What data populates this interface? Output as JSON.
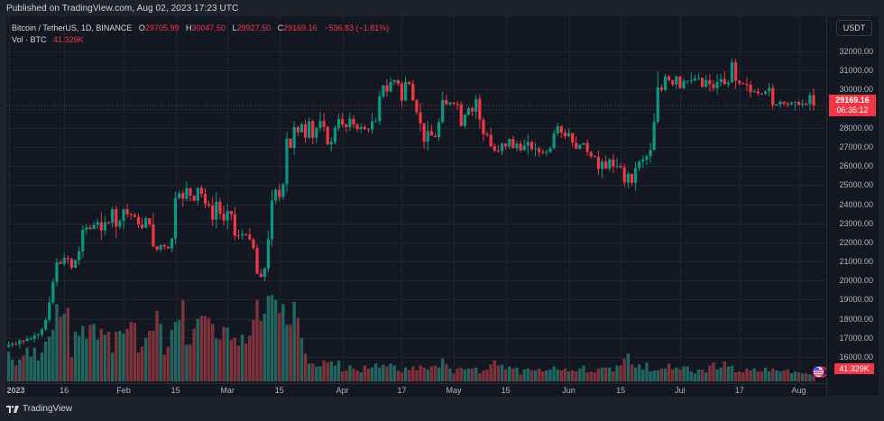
{
  "published": "Published on TradingView.com, Aug 02, 2023 17:23 UTC",
  "legend": {
    "symbol": "Bitcoin / TetherUS, 1D, BINANCE",
    "o_label": "O",
    "o": "29705.99",
    "h_label": "H",
    "h": "30047.50",
    "l_label": "L",
    "l": "28927.50",
    "c_label": "C",
    "c": "29169.16",
    "change": "−536.83 (−1.81%)",
    "vol_label": "Vol · BTC",
    "vol_value": "41.329K"
  },
  "price_axis": {
    "unit": "USDT",
    "ticks": [
      "32000.00",
      "31000.00",
      "30000.00",
      "28000.00",
      "27000.00",
      "26000.00",
      "25000.00",
      "24000.00",
      "23000.00",
      "22000.00",
      "21000.00",
      "20000.00",
      "19000.00",
      "18000.00",
      "17000.00",
      "16000.00"
    ],
    "last_price": "29169.16",
    "countdown": "06:36:12",
    "volume_marker": "41.329K"
  },
  "time_axis": {
    "ticks": [
      "2023",
      "16",
      "Feb",
      "15",
      "Mar",
      "15",
      "Apr",
      "17",
      "May",
      "15",
      "Jun",
      "15",
      "Jul",
      "17",
      "Aug"
    ]
  },
  "brand": {
    "label": "TradingView"
  },
  "colors": {
    "up": "#089981",
    "down": "#f23645",
    "vol_up": "#22675f",
    "vol_down": "#7f323b",
    "background": "#131722",
    "grid": "#1f2430"
  },
  "chart_data": {
    "type": "candlestick",
    "title": "Bitcoin / TetherUS, 1D, BINANCE",
    "xlabel": "",
    "ylabel": "USDT",
    "ylim": [
      15500,
      32600
    ],
    "x_range": [
      "2023-01-01",
      "2023-08-02"
    ],
    "grid": true,
    "last": {
      "open": 29705.99,
      "high": 30047.5,
      "low": 28927.5,
      "close": 29169.16,
      "change": -536.83,
      "change_pct": -1.81,
      "volume_k": 41.329
    },
    "closes": [
      16625,
      16688,
      16680,
      16863,
      16836,
      16951,
      16955,
      17127,
      17178,
      17440,
      17943,
      18850,
      19930,
      20954,
      20880,
      21185,
      21132,
      20677,
      21071,
      21534,
      22666,
      22783,
      22707,
      22917,
      23060,
      22630,
      23060,
      23023,
      23743,
      22827,
      23125,
      23732,
      23491,
      23431,
      23327,
      22937,
      22763,
      23264,
      22940,
      21797,
      21625,
      21862,
      21783,
      21682,
      22197,
      24327,
      24574,
      24290,
      24838,
      24450,
      24188,
      24856,
      24544,
      24020,
      23940,
      23190,
      24125,
      23495,
      23147,
      23640,
      23470,
      22355,
      22354,
      22430,
      22410,
      22160,
      21705,
      20360,
      20190,
      20630,
      22165,
      24195,
      24750,
      24375,
      25050,
      27436,
      26949,
      28038,
      27767,
      28176,
      27486,
      28335,
      27475,
      27992,
      28352,
      28044,
      27132,
      27260,
      27996,
      28465,
      28171,
      28035,
      28469,
      28164,
      27940,
      28044,
      27923,
      27912,
      28331,
      28340,
      29654,
      30223,
      29890,
      30390,
      30485,
      30315,
      29430,
      30395,
      30303,
      29438,
      28812,
      28243,
      27262,
      27824,
      27590,
      27515,
      28301,
      29450,
      29233,
      29319,
      29258,
      29230,
      28092,
      28680,
      29016,
      28848,
      29520,
      28424,
      27669,
      27629,
      27027,
      26804,
      26782,
      27175,
      27023,
      27417,
      26932,
      27167,
      26818,
      27070,
      27255,
      26887,
      26920,
      26735,
      26700,
      26745,
      26930,
      27710,
      28074,
      27748,
      27555,
      27725,
      27225,
      26900,
      27110,
      27210,
      26735,
      26500,
      26480,
      25855,
      26226,
      25853,
      26340,
      25980,
      26000,
      25920,
      25133,
      25590,
      25123,
      25880,
      26230,
      26340,
      26510,
      26835,
      28312,
      30115,
      29980,
      30690,
      30480,
      30270,
      30690,
      30080,
      30450,
      30455,
      30485,
      30585,
      30615,
      30150,
      30500,
      30280,
      30075,
      30390,
      30550,
      30280,
      30375,
      31425,
      30460,
      30325,
      30300,
      30250,
      29860,
      29910,
      29800,
      29790,
      29900,
      30080,
      29180,
      29225,
      29360,
      29270,
      29230,
      29310,
      29355,
      29200,
      29269,
      29240,
      29705,
      29169
    ],
    "volume_scale_note": "relative heights, max ~1.0",
    "volumes": [
      0.3,
      0.22,
      0.16,
      0.22,
      0.26,
      0.34,
      0.25,
      0.34,
      0.21,
      0.29,
      0.4,
      0.45,
      0.52,
      0.78,
      0.65,
      0.68,
      0.74,
      0.24,
      0.5,
      0.46,
      0.56,
      0.43,
      0.57,
      0.58,
      0.42,
      0.53,
      0.47,
      0.5,
      0.29,
      0.5,
      0.51,
      0.48,
      0.53,
      0.6,
      0.59,
      0.29,
      0.35,
      0.44,
      0.51,
      0.51,
      0.71,
      0.58,
      0.27,
      0.35,
      0.52,
      0.6,
      0.62,
      0.82,
      0.37,
      0.37,
      0.53,
      0.63,
      0.66,
      0.66,
      0.64,
      0.58,
      0.43,
      0.42,
      0.55,
      0.54,
      0.42,
      0.44,
      0.36,
      0.47,
      0.38,
      0.46,
      0.62,
      0.82,
      0.61,
      0.68,
      0.86,
      0.87,
      0.82,
      0.69,
      0.78,
      0.57,
      0.57,
      0.8,
      0.64,
      0.44,
      0.28,
      0.18,
      0.18,
      0.15,
      0.15,
      0.21,
      0.19,
      0.2,
      0.16,
      0.21,
      0.1,
      0.11,
      0.16,
      0.13,
      0.11,
      0.09,
      0.16,
      0.13,
      0.14,
      0.18,
      0.14,
      0.17,
      0.15,
      0.18,
      0.16,
      0.11,
      0.09,
      0.14,
      0.11,
      0.15,
      0.11,
      0.16,
      0.14,
      0.12,
      0.15,
      0.16,
      0.14,
      0.23,
      0.17,
      0.13,
      0.08,
      0.13,
      0.14,
      0.12,
      0.13,
      0.13,
      0.14,
      0.08,
      0.11,
      0.12,
      0.17,
      0.21,
      0.16,
      0.17,
      0.12,
      0.15,
      0.13,
      0.14,
      0.07,
      0.12,
      0.13,
      0.11,
      0.11,
      0.13,
      0.1,
      0.11,
      0.12,
      0.15,
      0.12,
      0.11,
      0.13,
      0.1,
      0.11,
      0.1,
      0.13,
      0.16,
      0.09,
      0.1,
      0.09,
      0.13,
      0.14,
      0.14,
      0.14,
      0.1,
      0.16,
      0.16,
      0.23,
      0.28,
      0.17,
      0.14,
      0.17,
      0.12,
      0.19,
      0.1,
      0.11,
      0.11,
      0.13,
      0.13,
      0.18,
      0.12,
      0.14,
      0.12,
      0.15,
      0.15,
      0.1,
      0.08,
      0.12,
      0.12,
      0.09,
      0.16,
      0.19,
      0.12,
      0.14,
      0.2,
      0.15,
      0.16,
      0.09,
      0.1,
      0.09,
      0.13,
      0.11,
      0.13,
      0.1,
      0.1,
      0.14,
      0.1,
      0.13,
      0.11,
      0.1,
      0.11,
      0.12,
      0.08,
      0.1,
      0.09,
      0.08,
      0.08,
      0.07,
      0.06,
      0.06,
      0.07,
      0.06
    ]
  }
}
